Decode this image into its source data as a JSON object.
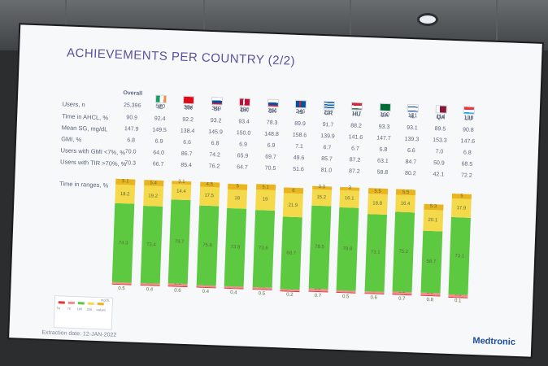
{
  "slide": {
    "title": "ACHIEVEMENTS PER COUNTRY (2/2)",
    "row_labels": [
      "Users, n",
      "Time in AHCL, %",
      "Mean SG, mg/dL",
      "GMI, %",
      "Users with GMI <7%, %",
      "Users with TIR >70%, %",
      "Time in ranges, %"
    ],
    "columns": [
      {
        "name": "Overall",
        "flag": "",
        "users": "25,396",
        "time_in_ahcl": "90.9",
        "mean_sg": "147.9",
        "gmi": "6.8",
        "gmi_under_7": "70.0",
        "tir_over_70": "70.3"
      },
      {
        "name": "IE",
        "flag": "ie-flag",
        "users": "570",
        "time_in_ahcl": "92.4",
        "mean_sg": "149.5",
        "gmi": "6.9",
        "gmi_under_7": "64.0",
        "tir_over_70": "66.7"
      },
      {
        "name": "TR",
        "flag": "tr-flag",
        "users": "384",
        "time_in_ahcl": "92.2",
        "mean_sg": "138.4",
        "gmi": "6.6",
        "gmi_under_7": "86.7",
        "tir_over_70": "85.4"
      },
      {
        "name": "SI",
        "flag": "si-flag",
        "users": "349",
        "time_in_ahcl": "93.2",
        "mean_sg": "145.9",
        "gmi": "6.8",
        "gmi_under_7": "74.2",
        "tir_over_70": "76.2"
      },
      {
        "name": "DK",
        "flag": "dk-flag",
        "users": "320",
        "time_in_ahcl": "93.4",
        "mean_sg": "150.0",
        "gmi": "6.9",
        "gmi_under_7": "65.9",
        "tir_over_70": "64.7"
      },
      {
        "name": "SK",
        "flag": "sk-flag",
        "users": "261",
        "time_in_ahcl": "78.3",
        "mean_sg": "148.8",
        "gmi": "6.9",
        "gmi_under_7": "69.7",
        "tir_over_70": "70.5"
      },
      {
        "name": "IS",
        "flag": "is-flag",
        "users": "246",
        "time_in_ahcl": "89.9",
        "mean_sg": "158.6",
        "gmi": "7.1",
        "gmi_under_7": "49.6",
        "tir_over_70": "51.6"
      },
      {
        "name": "GR",
        "flag": "gr-flag",
        "users": "237",
        "time_in_ahcl": "91.7",
        "mean_sg": "139.9",
        "gmi": "6.7",
        "gmi_under_7": "85.7",
        "tir_over_70": "81.0"
      },
      {
        "name": "HU",
        "flag": "hu-flag",
        "users": "187",
        "time_in_ahcl": "88.2",
        "mean_sg": "141.6",
        "gmi": "6.7",
        "gmi_under_7": "87.2",
        "tir_over_70": "87.2"
      },
      {
        "name": "SA",
        "flag": "sa-flag",
        "users": "160",
        "time_in_ahcl": "93.3",
        "mean_sg": "147.7",
        "gmi": "6.8",
        "gmi_under_7": "63.1",
        "tir_over_70": "58.8"
      },
      {
        "name": "IL",
        "flag": "il-flag",
        "users": "131",
        "time_in_ahcl": "93.1",
        "mean_sg": "139.3",
        "gmi": "6.6",
        "gmi_under_7": "84.7",
        "tir_over_70": "80.2"
      },
      {
        "name": "QA",
        "flag": "qa-flag",
        "users": "114",
        "time_in_ahcl": "89.5",
        "mean_sg": "153.3",
        "gmi": "7.0",
        "gmi_under_7": "50.9",
        "tir_over_70": "42.1"
      },
      {
        "name": "LU",
        "flag": "lu-flag",
        "users": "108",
        "time_in_ahcl": "90.8",
        "mean_sg": "147.6",
        "gmi": "6.8",
        "gmi_under_7": "68.5",
        "tir_over_70": "72.2"
      }
    ],
    "legend": {
      "unit": "mg/dL",
      "items": [
        "54",
        "70",
        "180",
        "250",
        "values"
      ],
      "colors": [
        "#d83a3a",
        "#f58c8c",
        "#5cc941",
        "#f4d94b",
        "#e9b41e"
      ]
    },
    "extraction_date": "Extraction date: 12-JAN-2022",
    "logo": "Medtronic"
  },
  "chart_data": {
    "type": "bar",
    "categories": [
      "Overall",
      "IE",
      "TR",
      "SI",
      "DK",
      "SK",
      "IS",
      "GR",
      "HU",
      "SA",
      "IL",
      "QA",
      "LU"
    ],
    "series": [
      {
        "name": "<54",
        "values": [
          0.5,
          0.4,
          0.6,
          0.4,
          0.4,
          0.5,
          0.2,
          0.7,
          0.5,
          0.6,
          0.7,
          0.8,
          0.1
        ]
      },
      {
        "name": "54-70",
        "values": [
          1.8,
          1.6,
          2.2,
          1.7,
          2.0,
          1.6,
          1.2,
          2.2,
          1.8,
          2.0,
          2.2,
          2.2,
          1.9
        ]
      },
      {
        "name": "70-180",
        "values": [
          74.3,
          73.4,
          79.7,
          75.8,
          73.8,
          73.6,
          68.7,
          78.5,
          78.8,
          73.1,
          75.2,
          58.7,
          73.1
        ]
      },
      {
        "name": "180-250",
        "values": [
          18.2,
          19.2,
          14.4,
          17.5,
          18.0,
          19.0,
          21.9,
          15.2,
          16.1,
          18.8,
          16.4,
          20.1,
          17.9
        ]
      },
      {
        "name": ">250",
        "values": [
          5.1,
          5.4,
          3.1,
          4.5,
          5.0,
          5.1,
          6.0,
          3.3,
          3.0,
          5.5,
          5.5,
          5.3,
          5.0
        ]
      }
    ],
    "colors": [
      "#d83a3a",
      "#f58c8c",
      "#5cc941",
      "#f4d94b",
      "#e9b41e"
    ],
    "stacked": true,
    "ylim": [
      0,
      100
    ]
  }
}
